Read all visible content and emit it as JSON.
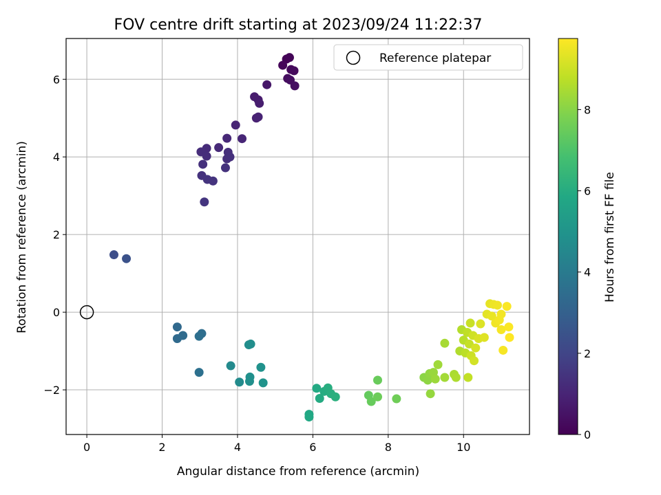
{
  "chart_data": {
    "type": "scatter",
    "title": "FOV centre drift starting at 2023/09/24 11:22:37",
    "xlabel": "Angular distance from reference (arcmin)",
    "ylabel": "Rotation from reference (arcmin)",
    "colorbar_label": "Hours from first FF file",
    "xlim": [
      -0.55,
      11.75
    ],
    "ylim": [
      -3.15,
      7.05
    ],
    "clim": [
      0,
      9.75
    ],
    "colormap": "viridis",
    "x_ticks": [
      0,
      2,
      4,
      6,
      8,
      10
    ],
    "y_ticks": [
      -2,
      0,
      2,
      4,
      6
    ],
    "colorbar_ticks": [
      0,
      2,
      4,
      6,
      8
    ],
    "grid": true,
    "legend_position": "top-right",
    "reference": {
      "label": "Reference platepar",
      "x": 0,
      "y": 0
    },
    "points": [
      {
        "x": 5.3,
        "y": 6.52,
        "h": 0.05
      },
      {
        "x": 5.38,
        "y": 6.56,
        "h": 0.1
      },
      {
        "x": 5.2,
        "y": 6.36,
        "h": 0.15
      },
      {
        "x": 5.42,
        "y": 6.25,
        "h": 0.2
      },
      {
        "x": 5.5,
        "y": 6.22,
        "h": 0.25
      },
      {
        "x": 5.33,
        "y": 6.02,
        "h": 0.3
      },
      {
        "x": 5.4,
        "y": 5.98,
        "h": 0.35
      },
      {
        "x": 5.52,
        "y": 5.83,
        "h": 0.4
      },
      {
        "x": 4.78,
        "y": 5.86,
        "h": 0.6
      },
      {
        "x": 4.55,
        "y": 5.47,
        "h": 0.7
      },
      {
        "x": 4.45,
        "y": 5.55,
        "h": 0.75
      },
      {
        "x": 4.58,
        "y": 5.38,
        "h": 0.8
      },
      {
        "x": 4.5,
        "y": 5.0,
        "h": 0.9
      },
      {
        "x": 4.55,
        "y": 5.03,
        "h": 0.95
      },
      {
        "x": 3.95,
        "y": 4.82,
        "h": 1.0
      },
      {
        "x": 4.12,
        "y": 4.47,
        "h": 1.05
      },
      {
        "x": 3.72,
        "y": 4.48,
        "h": 1.1
      },
      {
        "x": 3.5,
        "y": 4.24,
        "h": 1.15
      },
      {
        "x": 3.18,
        "y": 4.22,
        "h": 1.2
      },
      {
        "x": 3.03,
        "y": 4.13,
        "h": 1.25
      },
      {
        "x": 3.18,
        "y": 4.02,
        "h": 1.25
      },
      {
        "x": 3.75,
        "y": 4.12,
        "h": 1.3
      },
      {
        "x": 3.72,
        "y": 3.95,
        "h": 1.3
      },
      {
        "x": 3.8,
        "y": 4.0,
        "h": 1.35
      },
      {
        "x": 3.08,
        "y": 3.81,
        "h": 1.35
      },
      {
        "x": 3.68,
        "y": 3.72,
        "h": 1.4
      },
      {
        "x": 3.05,
        "y": 3.52,
        "h": 1.4
      },
      {
        "x": 3.2,
        "y": 3.42,
        "h": 1.45
      },
      {
        "x": 3.35,
        "y": 3.38,
        "h": 1.45
      },
      {
        "x": 3.12,
        "y": 2.84,
        "h": 1.5
      },
      {
        "x": 0.72,
        "y": 1.48,
        "h": 2.3
      },
      {
        "x": 1.05,
        "y": 1.38,
        "h": 2.45
      },
      {
        "x": 2.4,
        "y": -0.38,
        "h": 3.3
      },
      {
        "x": 2.4,
        "y": -0.68,
        "h": 3.35
      },
      {
        "x": 2.55,
        "y": -0.6,
        "h": 3.4
      },
      {
        "x": 3.05,
        "y": -0.55,
        "h": 3.5
      },
      {
        "x": 2.98,
        "y": -0.62,
        "h": 3.55
      },
      {
        "x": 2.98,
        "y": -1.55,
        "h": 3.6
      },
      {
        "x": 3.82,
        "y": -1.38,
        "h": 4.6
      },
      {
        "x": 4.05,
        "y": -1.8,
        "h": 4.65
      },
      {
        "x": 4.3,
        "y": -0.84,
        "h": 4.7
      },
      {
        "x": 4.35,
        "y": -0.82,
        "h": 4.75
      },
      {
        "x": 4.32,
        "y": -1.78,
        "h": 4.8
      },
      {
        "x": 4.33,
        "y": -1.67,
        "h": 4.85
      },
      {
        "x": 4.62,
        "y": -1.42,
        "h": 4.9
      },
      {
        "x": 4.68,
        "y": -1.82,
        "h": 4.95
      },
      {
        "x": 5.9,
        "y": -2.63,
        "h": 5.8
      },
      {
        "x": 5.9,
        "y": -2.7,
        "h": 5.85
      },
      {
        "x": 6.1,
        "y": -1.96,
        "h": 5.9
      },
      {
        "x": 6.18,
        "y": -2.22,
        "h": 5.95
      },
      {
        "x": 6.3,
        "y": -2.04,
        "h": 6.0
      },
      {
        "x": 6.4,
        "y": -1.95,
        "h": 6.05
      },
      {
        "x": 6.48,
        "y": -2.1,
        "h": 6.1
      },
      {
        "x": 6.6,
        "y": -2.18,
        "h": 6.15
      },
      {
        "x": 7.48,
        "y": -2.14,
        "h": 7.4
      },
      {
        "x": 7.55,
        "y": -2.3,
        "h": 7.45
      },
      {
        "x": 7.72,
        "y": -1.75,
        "h": 7.5
      },
      {
        "x": 7.72,
        "y": -2.18,
        "h": 7.55
      },
      {
        "x": 8.22,
        "y": -2.23,
        "h": 7.6
      },
      {
        "x": 8.95,
        "y": -1.68,
        "h": 8.05
      },
      {
        "x": 9.05,
        "y": -1.75,
        "h": 8.1
      },
      {
        "x": 9.1,
        "y": -1.58,
        "h": 8.15
      },
      {
        "x": 9.12,
        "y": -2.1,
        "h": 8.2
      },
      {
        "x": 9.2,
        "y": -1.55,
        "h": 8.25
      },
      {
        "x": 9.25,
        "y": -1.72,
        "h": 8.3
      },
      {
        "x": 9.32,
        "y": -1.35,
        "h": 8.35
      },
      {
        "x": 9.5,
        "y": -1.68,
        "h": 8.4
      },
      {
        "x": 9.5,
        "y": -0.8,
        "h": 8.45
      },
      {
        "x": 9.75,
        "y": -1.6,
        "h": 8.5
      },
      {
        "x": 9.8,
        "y": -1.68,
        "h": 8.55
      },
      {
        "x": 9.9,
        "y": -1.0,
        "h": 8.6
      },
      {
        "x": 9.95,
        "y": -0.45,
        "h": 8.65
      },
      {
        "x": 10.0,
        "y": -0.72,
        "h": 8.7
      },
      {
        "x": 10.05,
        "y": -1.05,
        "h": 8.75
      },
      {
        "x": 10.1,
        "y": -0.52,
        "h": 8.8
      },
      {
        "x": 10.12,
        "y": -1.68,
        "h": 8.85
      },
      {
        "x": 10.15,
        "y": -0.82,
        "h": 8.9
      },
      {
        "x": 10.18,
        "y": -0.28,
        "h": 8.95
      },
      {
        "x": 10.2,
        "y": -1.12,
        "h": 9.0
      },
      {
        "x": 10.25,
        "y": -0.6,
        "h": 9.05
      },
      {
        "x": 10.28,
        "y": -1.25,
        "h": 9.1
      },
      {
        "x": 10.32,
        "y": -0.92,
        "h": 9.15
      },
      {
        "x": 10.4,
        "y": -0.68,
        "h": 9.2
      },
      {
        "x": 10.45,
        "y": -0.3,
        "h": 9.25
      },
      {
        "x": 10.55,
        "y": -0.65,
        "h": 9.3
      },
      {
        "x": 10.62,
        "y": -0.05,
        "h": 9.35
      },
      {
        "x": 10.7,
        "y": 0.22,
        "h": 9.4
      },
      {
        "x": 10.75,
        "y": -0.1,
        "h": 9.45
      },
      {
        "x": 10.8,
        "y": 0.2,
        "h": 9.5
      },
      {
        "x": 10.85,
        "y": -0.28,
        "h": 9.55
      },
      {
        "x": 10.9,
        "y": 0.18,
        "h": 9.55
      },
      {
        "x": 10.95,
        "y": -0.2,
        "h": 9.6
      },
      {
        "x": 11.0,
        "y": -0.05,
        "h": 9.6
      },
      {
        "x": 11.0,
        "y": -0.45,
        "h": 9.65
      },
      {
        "x": 11.05,
        "y": -0.98,
        "h": 9.65
      },
      {
        "x": 11.15,
        "y": 0.15,
        "h": 9.7
      },
      {
        "x": 11.2,
        "y": -0.38,
        "h": 9.7
      },
      {
        "x": 11.22,
        "y": -0.65,
        "h": 9.75
      }
    ]
  }
}
